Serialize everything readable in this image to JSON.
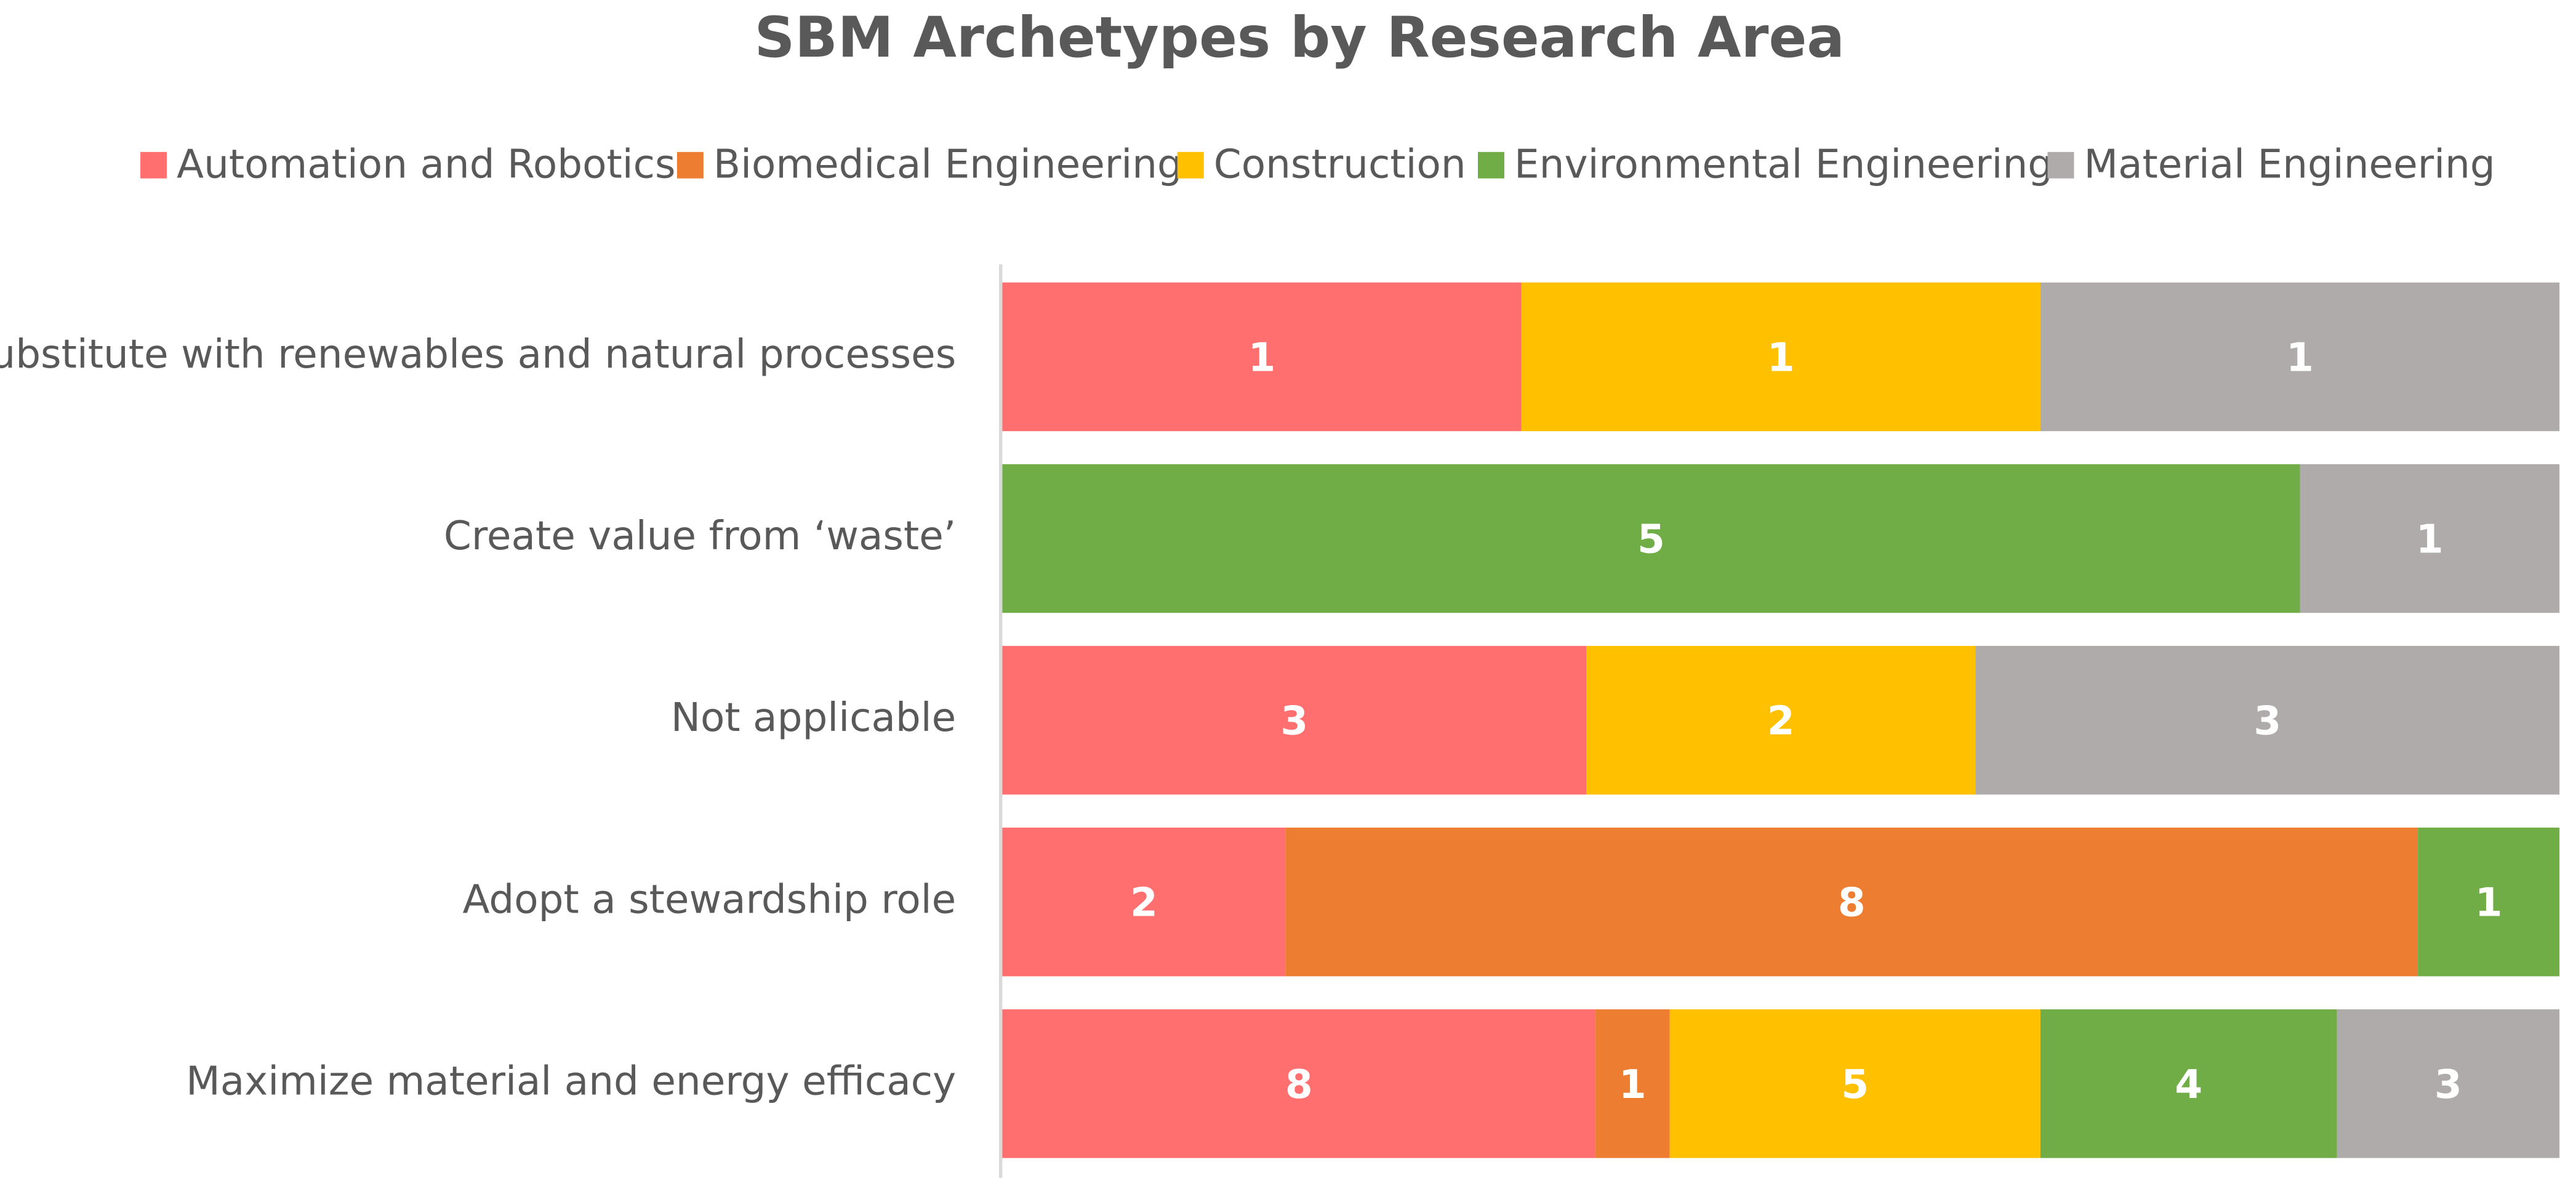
{
  "chart_data": {
    "type": "bar",
    "orientation": "horizontal",
    "stacked": "percent",
    "title": "SBM Archetypes by Research Area",
    "categories": [
      "Substitute with renewables and natural processes",
      "Create value from ‘waste’",
      "Not applicable",
      "Adopt a stewardship role",
      "Maximize material and energy efficacy"
    ],
    "series": [
      {
        "name": "Automation and Robotics",
        "color": "#ff6f6f",
        "values": [
          1,
          null,
          3,
          2,
          8
        ]
      },
      {
        "name": "Biomedical Engineering",
        "color": "#ed7d31",
        "values": [
          null,
          null,
          null,
          8,
          1
        ]
      },
      {
        "name": "Construction",
        "color": "#ffc000",
        "values": [
          1,
          null,
          2,
          null,
          5
        ]
      },
      {
        "name": "Environmental Engineering",
        "color": "#70ad47",
        "values": [
          null,
          5,
          null,
          1,
          4
        ]
      },
      {
        "name": "Material Engineering",
        "color": "#afabab",
        "values": [
          1,
          1,
          3,
          null,
          3
        ]
      }
    ],
    "legend": "top"
  }
}
